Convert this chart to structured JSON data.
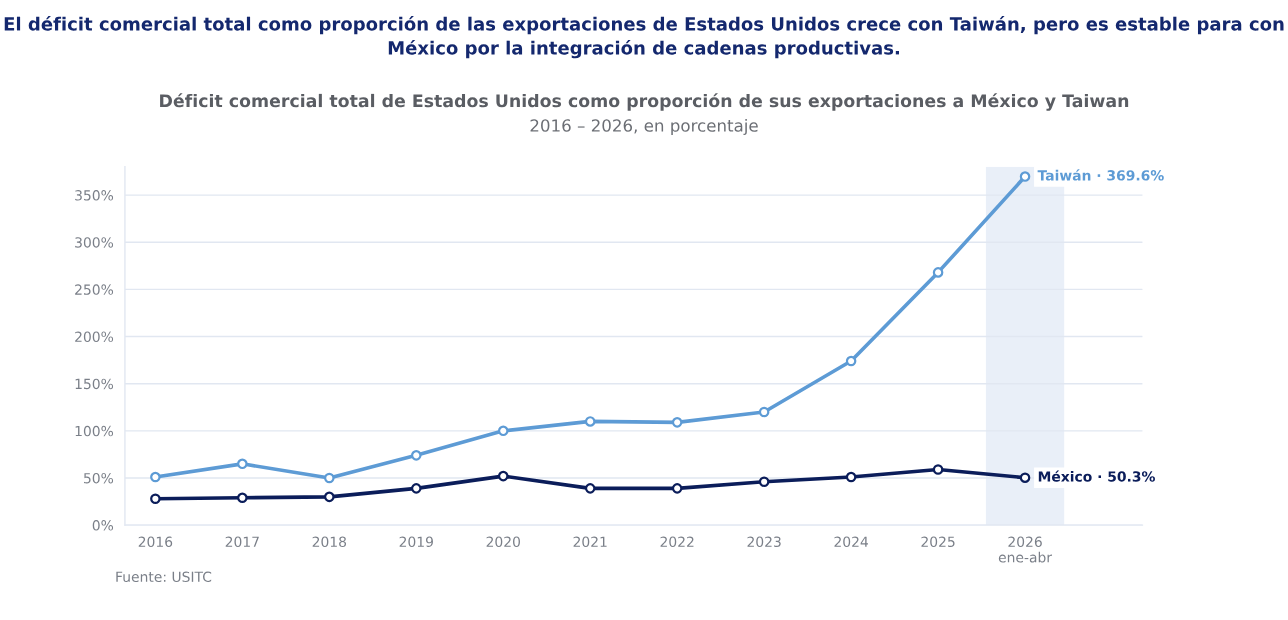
{
  "chart_data": {
    "type": "line",
    "title": "El déficit comercial total como proporción de las exportaciones de Estados Unidos crece con Taiwán, pero es estable para con México por la integración de cadenas productivas.",
    "subtitle": "Déficit comercial total de Estados Unidos como proporción de sus exportaciones a México y Taiwan\n2016 – 2026, en porcentaje",
    "annotations": [
      "Fuente: USITC"
    ],
    "categories": [
      "2016",
      "2017",
      "2018",
      "2019",
      "2020",
      "2021",
      "2022",
      "2023",
      "2024",
      "2025",
      "2026\nene-abr"
    ],
    "series": [
      {
        "color": "#5d9bd5",
        "values": [
          51,
          65,
          50,
          74,
          100,
          110,
          109,
          120,
          174,
          268,
          369.6
        ],
        "value_labels": [
          null,
          null,
          null,
          null,
          null,
          null,
          null,
          null,
          null,
          null,
          "Taiwán · 369.6%"
        ]
      },
      {
        "color": "#0b1d5a",
        "values": [
          28,
          29,
          30,
          39,
          52,
          39,
          39,
          46,
          51,
          59,
          50.3
        ],
        "value_labels": [
          null,
          null,
          null,
          null,
          null,
          null,
          null,
          null,
          null,
          null,
          "México · 50.3%"
        ]
      }
    ],
    "ylim": [
      0,
      380
    ],
    "yticks": [
      {
        "value": 0,
        "label": "0%"
      },
      {
        "value": 50,
        "label": "50%"
      },
      {
        "value": 100,
        "label": "100%"
      },
      {
        "value": 150,
        "label": "150%"
      },
      {
        "value": 200,
        "label": "200%"
      },
      {
        "value": 250,
        "label": "250%"
      },
      {
        "value": 300,
        "label": "300%"
      },
      {
        "value": 350,
        "label": "350%"
      }
    ],
    "grid": "y",
    "marker": "circle",
    "line_style": "solid",
    "bands": [
      {
        "axis": "x",
        "from": "2026\nene-abr",
        "to": "2026\nene-abr",
        "color": "#e9eff8"
      }
    ]
  }
}
